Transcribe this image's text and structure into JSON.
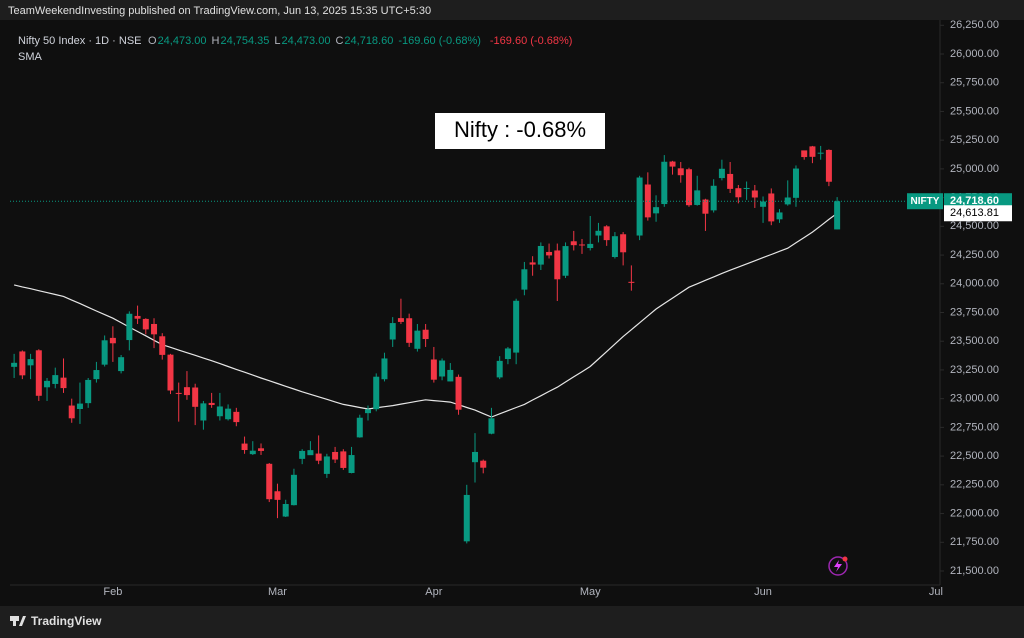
{
  "header": {
    "published": "TeamWeekendInvesting published on TradingView.com, Jun 13, 2025 15:35 UTC+5:30"
  },
  "footer": {
    "brand": "TradingView"
  },
  "chart_data": {
    "type": "candlestick",
    "symbol": "Nifty 50 Index · 1D · NSE",
    "ohlc_legend": [
      {
        "key": "O",
        "value": "24,473.00"
      },
      {
        "key": "H",
        "value": "24,754.35"
      },
      {
        "key": "L",
        "value": "24,473.00"
      },
      {
        "key": "C",
        "value": "24,718.60"
      }
    ],
    "change": "-169.60 (-0.68%)",
    "change_repeat": "-169.60 (-0.68%)",
    "annotation": "Nifty : -0.68%",
    "price_tag_name": "NIFTY",
    "price_tag": "24,718.60",
    "sma_tag": "24,613.81",
    "up_color": "#089981",
    "down_color": "#f23645",
    "categories": [
      null,
      null,
      null,
      null,
      null,
      null,
      null,
      null,
      null,
      null,
      null,
      null,
      "Feb",
      null,
      null,
      null,
      null,
      null,
      null,
      null,
      null,
      null,
      null,
      null,
      null,
      null,
      null,
      null,
      null,
      null,
      null,
      null,
      "Mar",
      null,
      null,
      null,
      null,
      null,
      null,
      null,
      null,
      null,
      null,
      null,
      null,
      null,
      null,
      null,
      null,
      null,
      null,
      "Apr",
      null,
      null,
      null,
      null,
      null,
      null,
      null,
      null,
      null,
      null,
      null,
      null,
      null,
      null,
      null,
      null,
      null,
      null,
      "May",
      null,
      null,
      null,
      null,
      null,
      null,
      null,
      null,
      null,
      null,
      null,
      null,
      null,
      null,
      null,
      null,
      null,
      null,
      null,
      null,
      "Jun",
      null,
      null,
      null,
      null,
      null,
      null,
      null,
      null,
      null,
      null,
      null,
      null,
      null,
      null,
      null,
      null,
      null,
      null,
      null,
      null,
      "Jul"
    ],
    "open": [
      23277,
      23411,
      23290,
      23421,
      23099,
      23128,
      23183,
      22940,
      22910,
      22961,
      23170,
      23296,
      23529,
      23240,
      23510,
      23720,
      23694,
      23650,
      23543,
      23383,
      23050,
      23100,
      23097,
      22810,
      22963,
      22847,
      22821,
      22885,
      22609,
      22517,
      22568,
      22433,
      22194,
      21974,
      22073,
      22476,
      22508,
      22522,
      22345,
      22536,
      22541,
      22353,
      22663,
      22874,
      22908,
      23169,
      23515,
      23701,
      23700,
      23434,
      23600,
      23341,
      23193,
      23150,
      23190,
      21758,
      22447,
      22460,
      22695,
      23185,
      23345,
      23401,
      23949,
      24186,
      24167,
      24277,
      24290,
      24070,
      24370,
      24342,
      24311,
      24420,
      24500,
      24233,
      24431,
      24017,
      24420,
      24864,
      24613,
      24694,
      25064,
      25005,
      24997,
      24686,
      24733,
      24639,
      24920,
      24956,
      24832,
      24825,
      24812,
      24670,
      24786,
      24561,
      24691,
      24748,
      25161,
      25196,
      25134,
      25165,
      24473,
      null,
      null,
      null,
      null,
      null,
      null,
      null,
      null,
      null,
      null,
      null,
      null
    ],
    "high": [
      23390,
      23420,
      23390,
      23430,
      23180,
      23270,
      23350,
      23000,
      23140,
      23180,
      23320,
      23550,
      23630,
      23380,
      23760,
      23810,
      23700,
      23700,
      23570,
      23390,
      23140,
      23240,
      23130,
      22980,
      23050,
      23050,
      22950,
      22920,
      22670,
      22630,
      22610,
      22440,
      22260,
      22120,
      22390,
      22560,
      22630,
      22680,
      22520,
      22580,
      22560,
      22580,
      22860,
      22940,
      23220,
      23400,
      23710,
      23870,
      23740,
      23650,
      23650,
      23450,
      23350,
      23310,
      23210,
      22250,
      22700,
      22470,
      22920,
      23370,
      23450,
      23870,
      24190,
      24240,
      24360,
      24350,
      24350,
      24360,
      24460,
      24390,
      24590,
      24530,
      24510,
      24450,
      24450,
      24160,
      24940,
      24970,
      24770,
      25120,
      25070,
      25060,
      25010,
      24940,
      24740,
      24910,
      25080,
      25060,
      24860,
      24890,
      24860,
      24760,
      24830,
      24650,
      24900,
      25030,
      25160,
      25200,
      25200,
      25170,
      24754.35,
      null,
      null,
      null,
      null,
      null,
      null,
      null,
      null,
      null,
      null,
      null,
      null
    ],
    "low": [
      23180,
      23170,
      23170,
      22980,
      22980,
      23090,
      23050,
      22790,
      22780,
      22920,
      23140,
      23280,
      23320,
      23220,
      23420,
      23650,
      23560,
      23440,
      23340,
      23040,
      22800,
      22990,
      22770,
      22730,
      22920,
      22810,
      22810,
      22760,
      22520,
      22510,
      22510,
      22100,
      21960,
      21970,
      22070,
      22430,
      22510,
      22430,
      22310,
      22440,
      22380,
      22350,
      22660,
      22810,
      22890,
      23150,
      23450,
      23650,
      23450,
      23410,
      23450,
      23140,
      23160,
      23150,
      22860,
      21740,
      22270,
      22350,
      22690,
      23170,
      23300,
      23300,
      23900,
      24070,
      24120,
      24220,
      23850,
      24050,
      24290,
      24260,
      24290,
      24360,
      24330,
      24220,
      24160,
      23940,
      24380,
      24550,
      24540,
      24670,
      24950,
      24880,
      24670,
      24680,
      24460,
      24620,
      24900,
      24790,
      24700,
      24730,
      24660,
      24530,
      24510,
      24530,
      24680,
      24670,
      25080,
      25050,
      25080,
      24850,
      24473,
      null,
      null,
      null,
      null,
      null,
      null,
      null,
      null,
      null,
      null,
      null,
      null
    ],
    "close": [
      23312,
      23203,
      23344,
      23025,
      23155,
      23205,
      23092,
      22829,
      22957,
      23163,
      23249,
      23508,
      23482,
      23361,
      23739,
      23696,
      23603,
      23560,
      23381,
      23071,
      23045,
      23031,
      22929,
      22959,
      22945,
      22932,
      22913,
      22796,
      22553,
      22547,
      22545,
      22125,
      22119,
      22083,
      22337,
      22545,
      22552,
      22460,
      22497,
      22470,
      22397,
      22509,
      22834,
      22907,
      23191,
      23350,
      23658,
      23668,
      23486,
      23592,
      23519,
      23165,
      23332,
      23250,
      22904,
      22162,
      22536,
      22399,
      22829,
      23329,
      23437,
      23852,
      24126,
      24167,
      24329,
      24247,
      24039,
      24328,
      24336,
      24334,
      24347,
      24461,
      24380,
      24414,
      24274,
      24008,
      24925,
      24578,
      24667,
      25062,
      25020,
      24945,
      24684,
      24813,
      24610,
      24853,
      25001,
      24826,
      24753,
      24834,
      24751,
      24716,
      24543,
      24621,
      24751,
      25003,
      25103,
      25105,
      25141,
      24888.2,
      24718.6,
      null,
      null,
      null,
      null,
      null,
      null,
      null,
      null,
      null,
      null,
      null,
      null
    ],
    "sma": {
      "name": "SMA",
      "color": "#e6e6e6",
      "values": [
        23990,
        23973,
        23957,
        23940,
        23923,
        23907,
        23890,
        23858,
        23827,
        23795,
        23763,
        23732,
        23700,
        23662,
        23623,
        23585,
        23547,
        23508,
        23470,
        23447,
        23423,
        23400,
        23377,
        23353,
        23330,
        23305,
        23280,
        23255,
        23230,
        23205,
        23180,
        23156,
        23132,
        23108,
        23084,
        23060,
        23038,
        23016,
        22994,
        22972,
        22950,
        22937,
        22923,
        22910,
        22920,
        22930,
        22940,
        22953,
        22965,
        22978,
        22990,
        22983,
        22977,
        22970,
        22947,
        22923,
        22900,
        22870,
        22840,
        22868,
        22895,
        22923,
        22950,
        22988,
        23025,
        23063,
        23100,
        23145,
        23190,
        23235,
        23280,
        23345,
        23410,
        23475,
        23540,
        23600,
        23660,
        23720,
        23780,
        23828,
        23875,
        23923,
        23970,
        24000,
        24030,
        24060,
        24090,
        24118,
        24145,
        24173,
        24200,
        24228,
        24255,
        24283,
        24310,
        24357,
        24403,
        24450,
        24505,
        24560,
        24613.81,
        null,
        null,
        null,
        null,
        null,
        null,
        null,
        null,
        null,
        null,
        null,
        null
      ]
    },
    "ylim": [
      21378,
      26296
    ],
    "yticks": [
      {
        "value": 21500,
        "label": "21,500.00"
      },
      {
        "value": 21750,
        "label": "21,750.00"
      },
      {
        "value": 22000,
        "label": "22,000.00"
      },
      {
        "value": 22250,
        "label": "22,250.00"
      },
      {
        "value": 22500,
        "label": "22,500.00"
      },
      {
        "value": 22750,
        "label": "22,750.00"
      },
      {
        "value": 23000,
        "label": "23,000.00"
      },
      {
        "value": 23250,
        "label": "23,250.00"
      },
      {
        "value": 23500,
        "label": "23,500.00"
      },
      {
        "value": 23750,
        "label": "23,750.00"
      },
      {
        "value": 24000,
        "label": "24,000.00"
      },
      {
        "value": 24250,
        "label": "24,250.00"
      },
      {
        "value": 24500,
        "label": "24,500.00"
      },
      {
        "value": 24750,
        "label": "24,750.00"
      },
      {
        "value": 25000,
        "label": "25,000.00"
      },
      {
        "value": 25250,
        "label": "25,250.00"
      },
      {
        "value": 25500,
        "label": "25,500.00"
      },
      {
        "value": 25750,
        "label": "25,750.00"
      },
      {
        "value": 26000,
        "label": "26,000.00"
      },
      {
        "value": 26250,
        "label": "26,250.00"
      }
    ],
    "grid": false
  }
}
